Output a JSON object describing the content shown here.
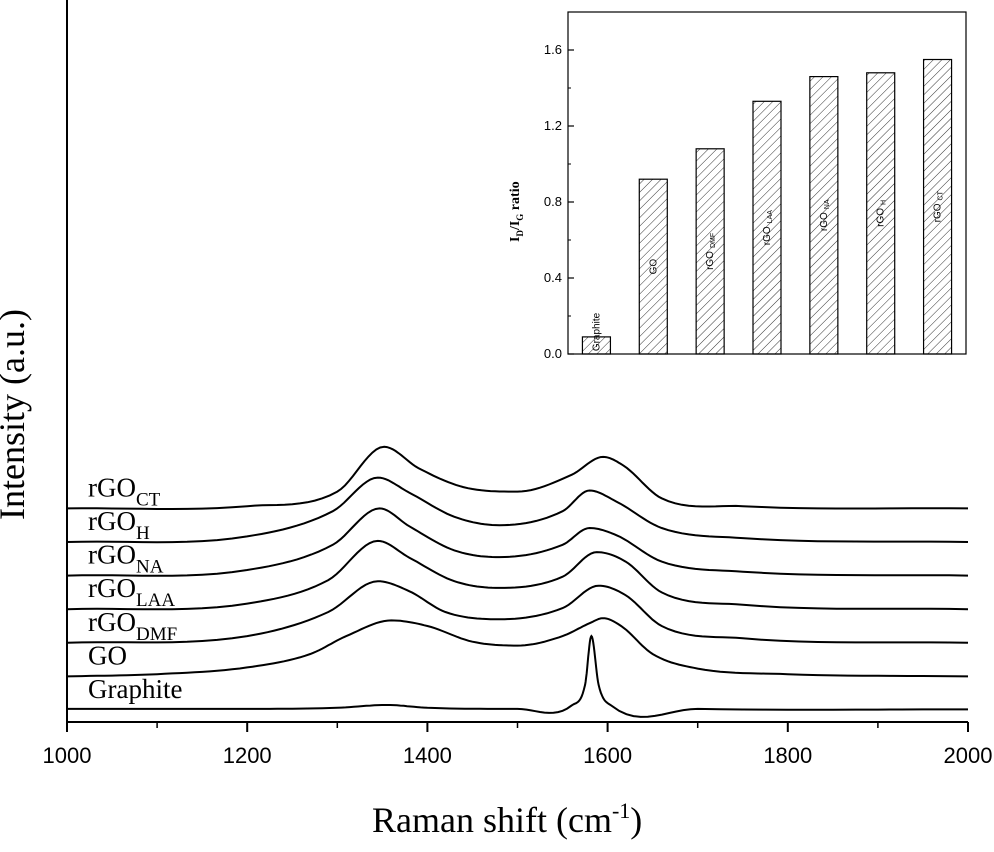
{
  "chart_data": [
    {
      "type": "line",
      "xlabel": "Raman shift (cm-1)",
      "xlabel_main": "Raman shift (cm",
      "xlabel_sup": "-1",
      "xlabel_close": ")",
      "ylabel": "Intensity (a.u.)",
      "xlim": [
        1000,
        2000
      ],
      "x_ticks": [
        "1000",
        "1200",
        "1400",
        "1600",
        "1800",
        "2000"
      ],
      "y_ticks_labeled": false,
      "grid": false,
      "legend": "none; series labeled at left of each stacked trace",
      "series": [
        {
          "name": "Graphite",
          "label_main": "Graphite",
          "label_sub": "",
          "offset": 0.0,
          "points": [
            [
              1000,
              0.02
            ],
            [
              1200,
              0.02
            ],
            [
              1300,
              0.04
            ],
            [
              1355,
              0.09
            ],
            [
              1400,
              0.04
            ],
            [
              1500,
              0.02
            ],
            [
              1560,
              0.08
            ],
            [
              1575,
              0.45
            ],
            [
              1582,
              1.32
            ],
            [
              1590,
              0.45
            ],
            [
              1605,
              0.07
            ],
            [
              1700,
              0.02
            ],
            [
              2000,
              0.01
            ]
          ]
        },
        {
          "name": "GO",
          "label_main": "GO",
          "label_sub": "",
          "offset": 0.6,
          "points": [
            [
              1000,
              0.0
            ],
            [
              1100,
              0.04
            ],
            [
              1200,
              0.16
            ],
            [
              1270,
              0.4
            ],
            [
              1310,
              0.72
            ],
            [
              1360,
              1.0
            ],
            [
              1400,
              0.9
            ],
            [
              1450,
              0.62
            ],
            [
              1500,
              0.55
            ],
            [
              1550,
              0.72
            ],
            [
              1580,
              0.95
            ],
            [
              1595,
              1.04
            ],
            [
              1615,
              0.9
            ],
            [
              1650,
              0.4
            ],
            [
              1700,
              0.14
            ],
            [
              1800,
              0.04
            ],
            [
              2000,
              0.0
            ]
          ]
        },
        {
          "name": "rGO_DMF",
          "label_main": "rGO",
          "label_sub": "DMF",
          "offset": 1.2,
          "points": [
            [
              1000,
              0.0
            ],
            [
              1200,
              0.12
            ],
            [
              1290,
              0.55
            ],
            [
              1345,
              1.1
            ],
            [
              1380,
              0.92
            ],
            [
              1420,
              0.55
            ],
            [
              1480,
              0.42
            ],
            [
              1550,
              0.62
            ],
            [
              1590,
              1.02
            ],
            [
              1620,
              0.85
            ],
            [
              1660,
              0.3
            ],
            [
              1750,
              0.08
            ],
            [
              2000,
              0.0
            ]
          ]
        },
        {
          "name": "rGO_LAA",
          "label_main": "rGO",
          "label_sub": "LAA",
          "offset": 1.8,
          "points": [
            [
              1000,
              0.0
            ],
            [
              1200,
              0.1
            ],
            [
              1290,
              0.52
            ],
            [
              1345,
              1.22
            ],
            [
              1380,
              0.92
            ],
            [
              1430,
              0.5
            ],
            [
              1480,
              0.38
            ],
            [
              1550,
              0.58
            ],
            [
              1588,
              1.02
            ],
            [
              1620,
              0.85
            ],
            [
              1660,
              0.3
            ],
            [
              1750,
              0.08
            ],
            [
              2000,
              0.0
            ]
          ]
        },
        {
          "name": "rGO_NA",
          "label_main": "rGO",
          "label_sub": "NA",
          "offset": 2.4,
          "points": [
            [
              1000,
              0.0
            ],
            [
              1200,
              0.1
            ],
            [
              1295,
              0.55
            ],
            [
              1347,
              1.2
            ],
            [
              1380,
              0.88
            ],
            [
              1430,
              0.45
            ],
            [
              1480,
              0.33
            ],
            [
              1550,
              0.55
            ],
            [
              1580,
              0.85
            ],
            [
              1610,
              0.72
            ],
            [
              1660,
              0.25
            ],
            [
              1750,
              0.07
            ],
            [
              2000,
              0.0
            ]
          ]
        },
        {
          "name": "rGO_H",
          "label_main": "rGO",
          "label_sub": "H",
          "offset": 3.0,
          "points": [
            [
              1000,
              0.0
            ],
            [
              1200,
              0.1
            ],
            [
              1295,
              0.55
            ],
            [
              1345,
              1.15
            ],
            [
              1380,
              0.88
            ],
            [
              1430,
              0.45
            ],
            [
              1480,
              0.3
            ],
            [
              1550,
              0.55
            ],
            [
              1580,
              0.92
            ],
            [
              1610,
              0.72
            ],
            [
              1660,
              0.25
            ],
            [
              1750,
              0.07
            ],
            [
              2000,
              0.0
            ]
          ]
        },
        {
          "name": "rGO_CT",
          "label_main": "rGO",
          "label_sub": "CT",
          "offset": 3.6,
          "points": [
            [
              1000,
              0.0
            ],
            [
              1200,
              0.04
            ],
            [
              1300,
              0.3
            ],
            [
              1352,
              1.1
            ],
            [
              1390,
              0.72
            ],
            [
              1440,
              0.38
            ],
            [
              1500,
              0.3
            ],
            [
              1560,
              0.6
            ],
            [
              1595,
              0.92
            ],
            [
              1618,
              0.76
            ],
            [
              1660,
              0.18
            ],
            [
              1750,
              0.04
            ],
            [
              2000,
              0.0
            ]
          ]
        }
      ]
    },
    {
      "type": "bar",
      "ylabel": "ID/IG ratio",
      "ylabel_I1": "I",
      "ylabel_D": "D",
      "ylabel_slash": "/I",
      "ylabel_G": "G",
      "ylabel_rest": " ratio",
      "ylim": [
        0,
        1.8
      ],
      "y_ticks": [
        "0.0",
        "0.4",
        "0.8",
        "1.2",
        "1.6"
      ],
      "categories": [
        "Graphite",
        "GO",
        "rGO DMF",
        "rGO LAA",
        "rGO NA",
        "rGO H",
        "rGO CT"
      ],
      "bar_labels": [
        {
          "main": "Graphite",
          "sub": ""
        },
        {
          "main": "GO",
          "sub": ""
        },
        {
          "main": "rGO",
          "sub": "DMF"
        },
        {
          "main": "rGO",
          "sub": "LAA"
        },
        {
          "main": "rGO",
          "sub": "NA"
        },
        {
          "main": "rGO",
          "sub": "H"
        },
        {
          "main": "rGO",
          "sub": "CT"
        }
      ],
      "values": [
        0.09,
        0.92,
        1.08,
        1.33,
        1.46,
        1.48,
        1.55
      ],
      "fill": "diagonal hatch",
      "grid": false
    }
  ]
}
